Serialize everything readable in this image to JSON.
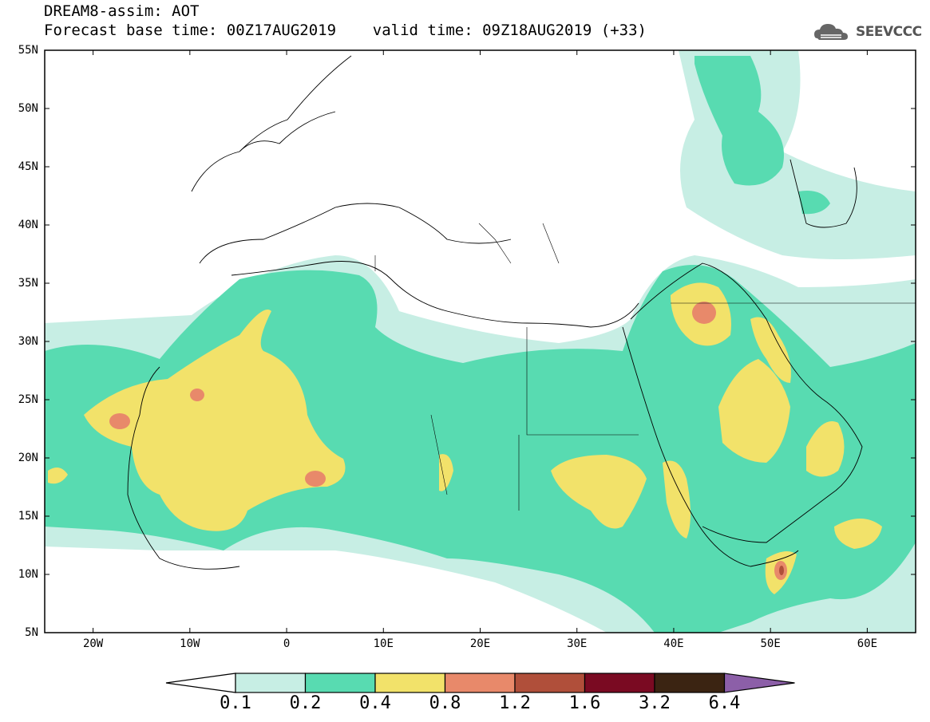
{
  "header": {
    "line1": "DREAM8-assim: AOT",
    "line2": "Forecast base time: 00Z17AUG2019    valid time: 09Z18AUG2019 (+33)"
  },
  "logo": {
    "text": "SEEVCCC",
    "icon": "cloud-icon",
    "color": "#555555"
  },
  "map": {
    "lat_labels": [
      "55N",
      "50N",
      "45N",
      "40N",
      "35N",
      "30N",
      "25N",
      "20N",
      "15N",
      "10N",
      "5N"
    ],
    "lon_labels": [
      "20W",
      "10W",
      "0",
      "10E",
      "20E",
      "30E",
      "40E",
      "50E",
      "60E"
    ],
    "extent": {
      "lon_min": -25,
      "lon_max": 65,
      "lat_min": 5,
      "lat_max": 55
    }
  },
  "colorbar": {
    "labels": [
      "0.1",
      "0.2",
      "0.4",
      "0.8",
      "1.2",
      "1.6",
      "3.2",
      "6.4"
    ],
    "colors": [
      "#ffffff",
      "#c7eee4",
      "#58dbb1",
      "#f2e26a",
      "#e8896a",
      "#b04f3a",
      "#7a0a22",
      "#3b2412",
      "#8c5fa8"
    ]
  }
}
